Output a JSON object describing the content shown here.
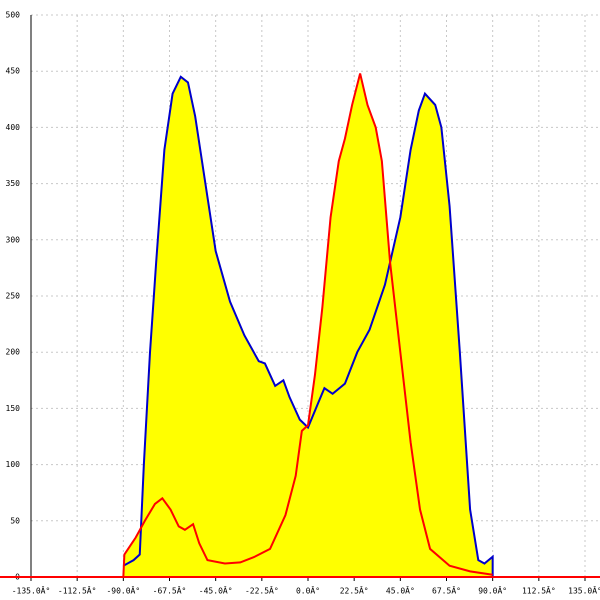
{
  "chart_data": {
    "type": "area",
    "xlim": [
      -135,
      135
    ],
    "xticks": [
      {
        "value": -135,
        "label": "-135.0Â°"
      },
      {
        "value": -112.5,
        "label": "-112.5Â°"
      },
      {
        "value": -90,
        "label": "-90.0Â°"
      },
      {
        "value": -67.5,
        "label": "-67.5Â°"
      },
      {
        "value": -45,
        "label": "-45.0Â°"
      },
      {
        "value": -22.5,
        "label": "-22.5Â°"
      },
      {
        "value": 0,
        "label": "0.0Â°"
      },
      {
        "value": 22.5,
        "label": "22.5Â°"
      },
      {
        "value": 45,
        "label": "45.0Â°"
      },
      {
        "value": 67.5,
        "label": "67.5Â°"
      },
      {
        "value": 90,
        "label": "90.0Â°"
      },
      {
        "value": 112.5,
        "label": "112.5Â°"
      },
      {
        "value": 135,
        "label": "135.0Â°"
      }
    ],
    "ylim": [
      0,
      500
    ],
    "yticks": [
      0,
      50,
      100,
      150,
      200,
      250,
      300,
      350,
      400,
      450,
      500
    ],
    "grid": true,
    "fill_color": "#ffff00",
    "series": [
      {
        "color": "#0000cc",
        "x": [
          -90,
          -85,
          -82,
          -80,
          -77,
          -74,
          -70,
          -66,
          -62,
          -58.5,
          -55,
          -50,
          -45,
          -38,
          -31,
          -24,
          -21,
          -16,
          -12,
          -9,
          -4,
          0,
          5,
          8,
          12,
          18,
          24,
          30,
          37.5,
          45,
          50,
          54,
          57,
          62,
          65,
          69,
          74,
          79,
          83,
          86,
          90,
          90
        ],
        "values": [
          10,
          15,
          20,
          100,
          200,
          280,
          380,
          430,
          445,
          440,
          410,
          350,
          290,
          245,
          215,
          192,
          190,
          170,
          175,
          160,
          140,
          133,
          155,
          168,
          163,
          172,
          200,
          220,
          260,
          320,
          380,
          415,
          430,
          420,
          400,
          330,
          200,
          60,
          15,
          12,
          18,
          0
        ]
      },
      {
        "color": "#ff0000",
        "x": [
          -90,
          -89.5,
          -84,
          -79.5,
          -74.6,
          -71,
          -67,
          -63,
          -60,
          -56,
          -53,
          -49,
          -40.5,
          -33,
          -26,
          -18.5,
          -11,
          -6,
          -3,
          0,
          3.4,
          7,
          11,
          15,
          18,
          21.5,
          25.4,
          29,
          33,
          36,
          40,
          45,
          50,
          54.6,
          59.5,
          69,
          79,
          90
        ],
        "values": [
          0,
          20,
          35,
          50,
          65,
          70,
          60,
          45,
          42,
          47,
          30,
          15,
          12,
          13,
          18,
          25,
          55,
          90,
          130,
          135,
          180,
          240,
          320,
          370,
          390,
          420,
          448,
          420,
          400,
          370,
          280,
          200,
          120,
          60,
          25,
          10,
          5,
          2
        ]
      }
    ]
  }
}
